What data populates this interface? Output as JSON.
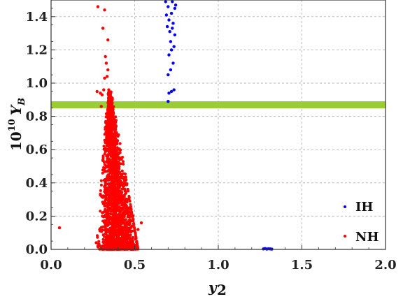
{
  "chart_data": {
    "type": "scatter",
    "xlabel": "y2",
    "ylabel": "10^10 Y_B",
    "xlim": [
      0.0,
      2.0
    ],
    "ylim": [
      0.0,
      1.5
    ],
    "x_ticks": [
      "0.0",
      "0.5",
      "1.0",
      "1.5",
      "2.0"
    ],
    "y_ticks": [
      "0.0",
      "0.2",
      "0.4",
      "0.6",
      "0.8",
      "1.0",
      "1.2",
      "1.4"
    ],
    "grid": "dashed",
    "legend_position": "bottom-right",
    "band": {
      "y": 0.87,
      "color": "#9ACD32"
    },
    "series": [
      {
        "name": "IH",
        "color": "#0000ff",
        "points": [
          [
            0.685,
            1.49
          ],
          [
            0.7,
            1.46
          ],
          [
            0.725,
            1.49
          ],
          [
            0.74,
            1.45
          ],
          [
            0.745,
            1.47
          ],
          [
            0.69,
            1.41
          ],
          [
            0.705,
            1.38
          ],
          [
            0.72,
            1.42
          ],
          [
            0.73,
            1.36
          ],
          [
            0.695,
            1.34
          ],
          [
            0.71,
            1.31
          ],
          [
            0.725,
            1.33
          ],
          [
            0.74,
            1.29
          ],
          [
            0.715,
            1.25
          ],
          [
            0.735,
            1.22
          ],
          [
            0.72,
            1.2
          ],
          [
            0.705,
            1.17
          ],
          [
            0.73,
            1.12
          ],
          [
            0.715,
            1.08
          ],
          [
            0.7,
            1.05
          ],
          [
            0.735,
            0.96
          ],
          [
            0.72,
            0.95
          ],
          [
            0.705,
            0.94
          ],
          [
            0.7,
            0.89
          ],
          [
            1.27,
            0.003
          ],
          [
            1.28,
            0.005
          ],
          [
            1.29,
            0.002
          ],
          [
            1.3,
            0.004
          ],
          [
            1.31,
            0.003
          ],
          [
            1.32,
            0.002
          ]
        ]
      },
      {
        "name": "NH",
        "color": "#ff0000",
        "outliers": [
          [
            0.05,
            0.13
          ],
          [
            0.28,
            1.46
          ],
          [
            0.32,
            1.44
          ],
          [
            0.31,
            1.33
          ],
          [
            0.34,
            1.26
          ],
          [
            0.325,
            1.16
          ],
          [
            0.33,
            1.12
          ],
          [
            0.34,
            1.08
          ],
          [
            0.32,
            1.03
          ],
          [
            0.335,
            1.04
          ],
          [
            0.275,
            0.95
          ],
          [
            0.295,
            0.94
          ],
          [
            0.305,
            0.93
          ],
          [
            0.315,
            0.96
          ],
          [
            0.345,
            0.96
          ],
          [
            0.355,
            0.94
          ],
          [
            0.36,
            0.9
          ],
          [
            0.3,
            0.86
          ],
          [
            0.35,
            0.84
          ],
          [
            0.54,
            0.16
          ],
          [
            0.52,
            0.12
          ],
          [
            0.49,
            0.2
          ],
          [
            0.47,
            0.25
          ],
          [
            0.27,
            0.04
          ],
          [
            0.28,
            0.02
          ]
        ],
        "cloud": {
          "count": 2000,
          "apex": [
            0.34,
            0.95
          ],
          "base_y": 0.0,
          "base_x_range": [
            0.27,
            0.52
          ],
          "dense_center_x": 0.41,
          "dense_y_below": 0.45
        }
      }
    ]
  }
}
